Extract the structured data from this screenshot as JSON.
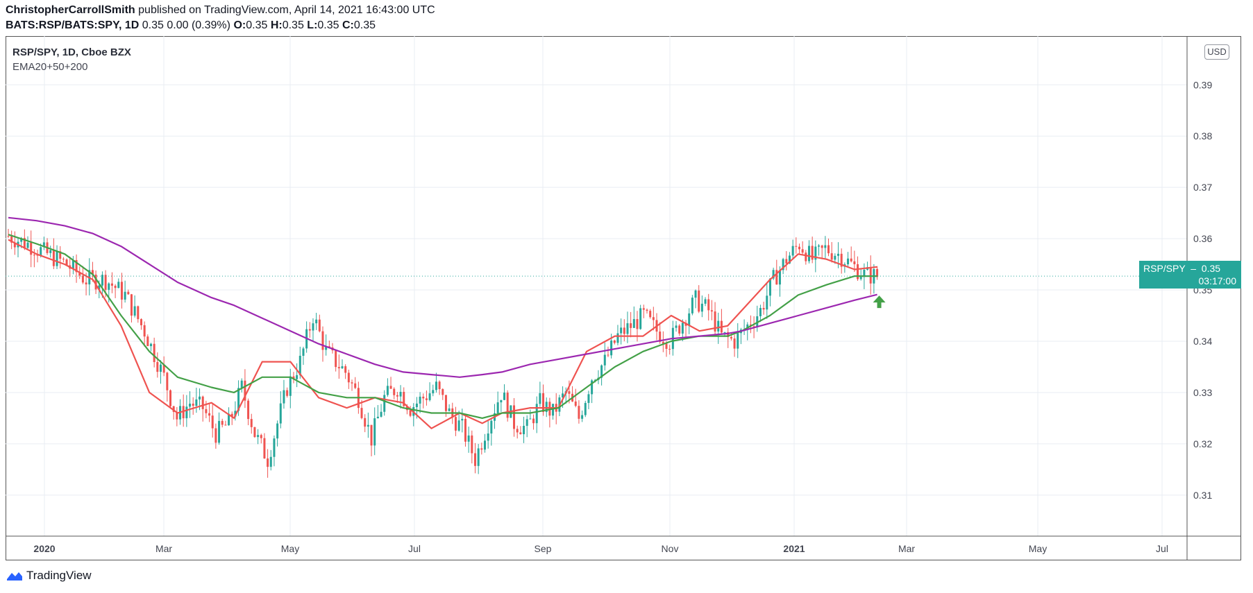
{
  "header": {
    "author": "ChristopherCarrollSmith",
    "published": "published on TradingView.com, April 14, 2021 16:43:00 UTC",
    "symbol": "BATS:RSP/BATS:SPY, 1D",
    "change": "0.35 0.00 (0.39%)",
    "o_label": "O:",
    "o_val": "0.35",
    "h_label": "H:",
    "h_val": "0.35",
    "l_label": "L:",
    "l_val": "0.35",
    "c_label": "C:",
    "c_val": "0.35"
  },
  "legend": {
    "title": "RSP/SPY, 1D, Cboe BZX",
    "indicators": "EMA20+50+200"
  },
  "currency_button": "USD",
  "price_badge": {
    "label": "RSP/SPY",
    "value": "0.35",
    "countdown": "03:17:00"
  },
  "footer": {
    "brand": "TradingView"
  },
  "colors": {
    "up": "#26a69a",
    "down": "#ef5350",
    "ema20": "#ef5350",
    "ema50": "#43a047",
    "ema200": "#9c27b0",
    "arrow": "#43a047"
  },
  "chart_data": {
    "type": "candlestick",
    "title": "RSP/SPY, 1D, Cboe BZX",
    "ylim": [
      0.302,
      0.3995
    ],
    "y_ticks": [
      "0.39",
      "0.38",
      "0.37",
      "0.36",
      "0.35",
      "0.34",
      "0.33",
      "0.32",
      "0.31"
    ],
    "x_ticks": [
      "2020",
      "Mar",
      "May",
      "Jul",
      "Sep",
      "Nov",
      "2021",
      "Mar",
      "May",
      "Jul"
    ],
    "x_tick_bold": [
      "2020",
      "2021"
    ],
    "last_price": 0.3527,
    "series": [
      {
        "name": "EMA20",
        "x": [
          0,
          10,
          20,
          30,
          40,
          50,
          60,
          72,
          80,
          90,
          100,
          110,
          120,
          130,
          140,
          150,
          160,
          168,
          175,
          185,
          195,
          205,
          215,
          225,
          235,
          245,
          255,
          260,
          270,
          280,
          290,
          300,
          308
        ],
        "values": [
          0.3598,
          0.357,
          0.355,
          0.352,
          0.343,
          0.33,
          0.326,
          0.328,
          0.325,
          0.336,
          0.336,
          0.329,
          0.327,
          0.329,
          0.328,
          0.323,
          0.326,
          0.324,
          0.326,
          0.327,
          0.327,
          0.338,
          0.341,
          0.341,
          0.345,
          0.342,
          0.343,
          0.346,
          0.352,
          0.357,
          0.356,
          0.354,
          0.3545
        ]
      },
      {
        "name": "EMA50",
        "x": [
          0,
          10,
          20,
          30,
          40,
          50,
          60,
          72,
          80,
          90,
          100,
          110,
          120,
          130,
          140,
          150,
          160,
          168,
          175,
          185,
          195,
          205,
          215,
          225,
          235,
          245,
          255,
          260,
          270,
          280,
          290,
          300,
          308
        ],
        "values": [
          0.3608,
          0.359,
          0.357,
          0.353,
          0.345,
          0.338,
          0.333,
          0.331,
          0.33,
          0.333,
          0.333,
          0.33,
          0.329,
          0.329,
          0.327,
          0.326,
          0.326,
          0.325,
          0.326,
          0.326,
          0.327,
          0.331,
          0.335,
          0.338,
          0.34,
          0.341,
          0.341,
          0.342,
          0.345,
          0.349,
          0.351,
          0.3527,
          0.3527
        ]
      },
      {
        "name": "EMA200",
        "x": [
          0,
          10,
          20,
          30,
          40,
          50,
          60,
          72,
          80,
          90,
          100,
          110,
          120,
          130,
          140,
          150,
          160,
          168,
          175,
          185,
          195,
          205,
          215,
          225,
          235,
          245,
          255,
          260,
          270,
          280,
          290,
          300,
          308
        ],
        "values": [
          0.3641,
          0.3635,
          0.3625,
          0.361,
          0.3585,
          0.355,
          0.3515,
          0.3485,
          0.347,
          0.3445,
          0.342,
          0.3395,
          0.3375,
          0.3355,
          0.334,
          0.3335,
          0.333,
          0.3335,
          0.334,
          0.3355,
          0.3365,
          0.3375,
          0.3385,
          0.3395,
          0.3405,
          0.341,
          0.3415,
          0.342,
          0.3435,
          0.345,
          0.3465,
          0.348,
          0.3491
        ]
      }
    ],
    "candles": {
      "count": 308,
      "close_path": {
        "x": [
          0,
          6,
          12,
          18,
          24,
          30,
          36,
          42,
          48,
          52,
          56,
          60,
          64,
          68,
          72,
          76,
          80,
          86,
          90,
          94,
          98,
          104,
          108,
          112,
          116,
          120,
          124,
          128,
          132,
          136,
          140,
          144,
          148,
          152,
          156,
          160,
          164,
          168,
          172,
          176,
          180,
          184,
          188,
          192,
          196,
          200,
          204,
          208,
          212,
          216,
          220,
          224,
          228,
          232,
          236,
          240,
          244,
          248,
          252,
          256,
          260,
          264,
          268,
          272,
          276,
          280,
          284,
          288,
          292,
          296,
          300,
          304,
          308
        ],
        "values": [
          0.3605,
          0.359,
          0.357,
          0.355,
          0.352,
          0.352,
          0.349,
          0.342,
          0.333,
          0.325,
          0.328,
          0.327,
          0.322,
          0.324,
          0.331,
          0.322,
          0.317,
          0.331,
          0.336,
          0.345,
          0.338,
          0.334,
          0.329,
          0.321,
          0.329,
          0.331,
          0.327,
          0.329,
          0.331,
          0.326,
          0.323,
          0.317,
          0.324,
          0.33,
          0.324,
          0.323,
          0.328,
          0.326,
          0.33,
          0.325,
          0.333,
          0.336,
          0.341,
          0.343,
          0.345,
          0.342,
          0.34,
          0.344,
          0.348,
          0.346,
          0.341,
          0.34,
          0.343,
          0.346,
          0.352,
          0.356,
          0.359,
          0.356,
          0.358,
          0.357,
          0.355,
          0.353,
          0.3527,
          0.3527,
          0.3527,
          0.3527,
          0.3527,
          0.3527,
          0.3527,
          0.3527,
          0.3527,
          0.3527,
          0.3527
        ]
      },
      "last_index": 268
    }
  }
}
